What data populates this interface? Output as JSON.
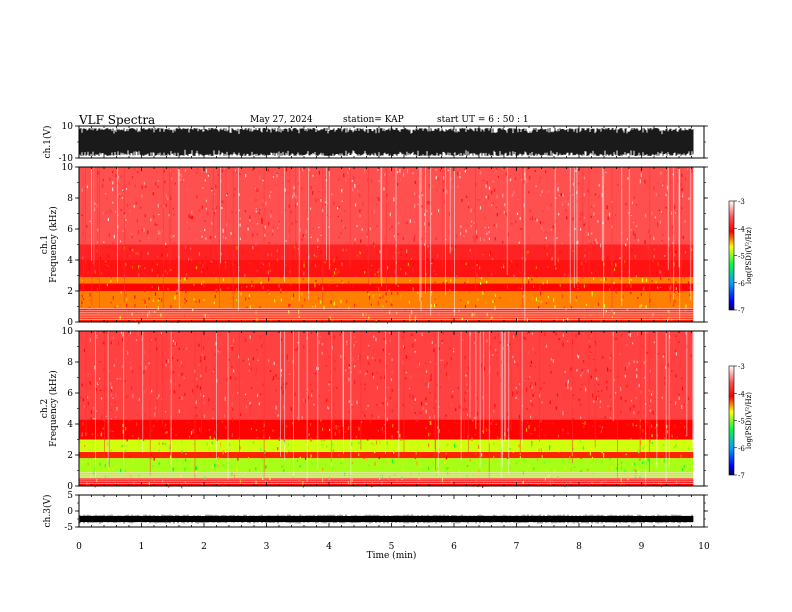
{
  "header": {
    "title": "VLF Spectra",
    "date": "May 27, 2024",
    "station": "station= KAP",
    "start": "start  UT  =   6  : 50 : 1"
  },
  "chart_data": [
    {
      "type": "line",
      "id": "ch1-waveform",
      "ylabel": "ch.1(V)",
      "ylim": [
        -10,
        10
      ],
      "yticks": [
        "10",
        "-10"
      ],
      "xlim": [
        0,
        10
      ],
      "data_end": 9.83
    },
    {
      "type": "heatmap",
      "id": "ch1-spectrogram",
      "ylabel": "ch.1\nFrequency (kHz)",
      "ylim": [
        0,
        10
      ],
      "yticks": [
        "0",
        "2",
        "4",
        "6",
        "8",
        "10"
      ],
      "xlim": [
        0,
        10
      ],
      "data_end": 9.83,
      "colorbar": {
        "label": "log(PSD)(V²/Hz)",
        "min": -7,
        "max": -3,
        "ticks": [
          "-3",
          "-4",
          "-5",
          "-6",
          "-7"
        ]
      },
      "bands": [
        {
          "from": 0.0,
          "to": 0.9,
          "level": -4.2
        },
        {
          "from": 0.9,
          "to": 2.0,
          "level": -4.4
        },
        {
          "from": 2.0,
          "to": 2.5,
          "level": -4.1
        },
        {
          "from": 2.5,
          "to": 2.9,
          "level": -4.4
        },
        {
          "from": 2.9,
          "to": 4.0,
          "level": -4.0
        },
        {
          "from": 4.0,
          "to": 5.0,
          "level": -3.9
        },
        {
          "from": 5.0,
          "to": 10.0,
          "level": -3.6
        }
      ]
    },
    {
      "type": "heatmap",
      "id": "ch2-spectrogram",
      "ylabel": "ch.2\nFrequency (kHz)",
      "ylim": [
        0,
        10
      ],
      "yticks": [
        "0",
        "2",
        "4",
        "6",
        "8",
        "10"
      ],
      "xlim": [
        0,
        10
      ],
      "data_end": 9.83,
      "colorbar": {
        "label": "log(PSD)(V²/Hz)",
        "min": -7,
        "max": -3,
        "ticks": [
          "-3",
          "-4",
          "-5",
          "-6",
          "-7"
        ]
      },
      "bands": [
        {
          "from": 0.0,
          "to": 0.5,
          "level": -4.1
        },
        {
          "from": 0.5,
          "to": 1.8,
          "level": -4.9
        },
        {
          "from": 1.8,
          "to": 2.2,
          "level": -4.2
        },
        {
          "from": 2.2,
          "to": 3.0,
          "level": -4.8
        },
        {
          "from": 3.0,
          "to": 4.3,
          "level": -4.1
        },
        {
          "from": 4.3,
          "to": 10.0,
          "level": -3.7
        }
      ]
    },
    {
      "type": "line",
      "id": "ch3-waveform",
      "ylabel": "ch.3(V)",
      "ylim": [
        -5,
        5
      ],
      "yticks": [
        "5",
        "0",
        "-5"
      ],
      "xlim": [
        0,
        10
      ],
      "data_end": 9.83,
      "level": -2.5,
      "xlabel": "Time  (min)",
      "xticks": [
        "0",
        "1",
        "2",
        "3",
        "4",
        "5",
        "6",
        "7",
        "8",
        "9",
        "10"
      ]
    }
  ]
}
